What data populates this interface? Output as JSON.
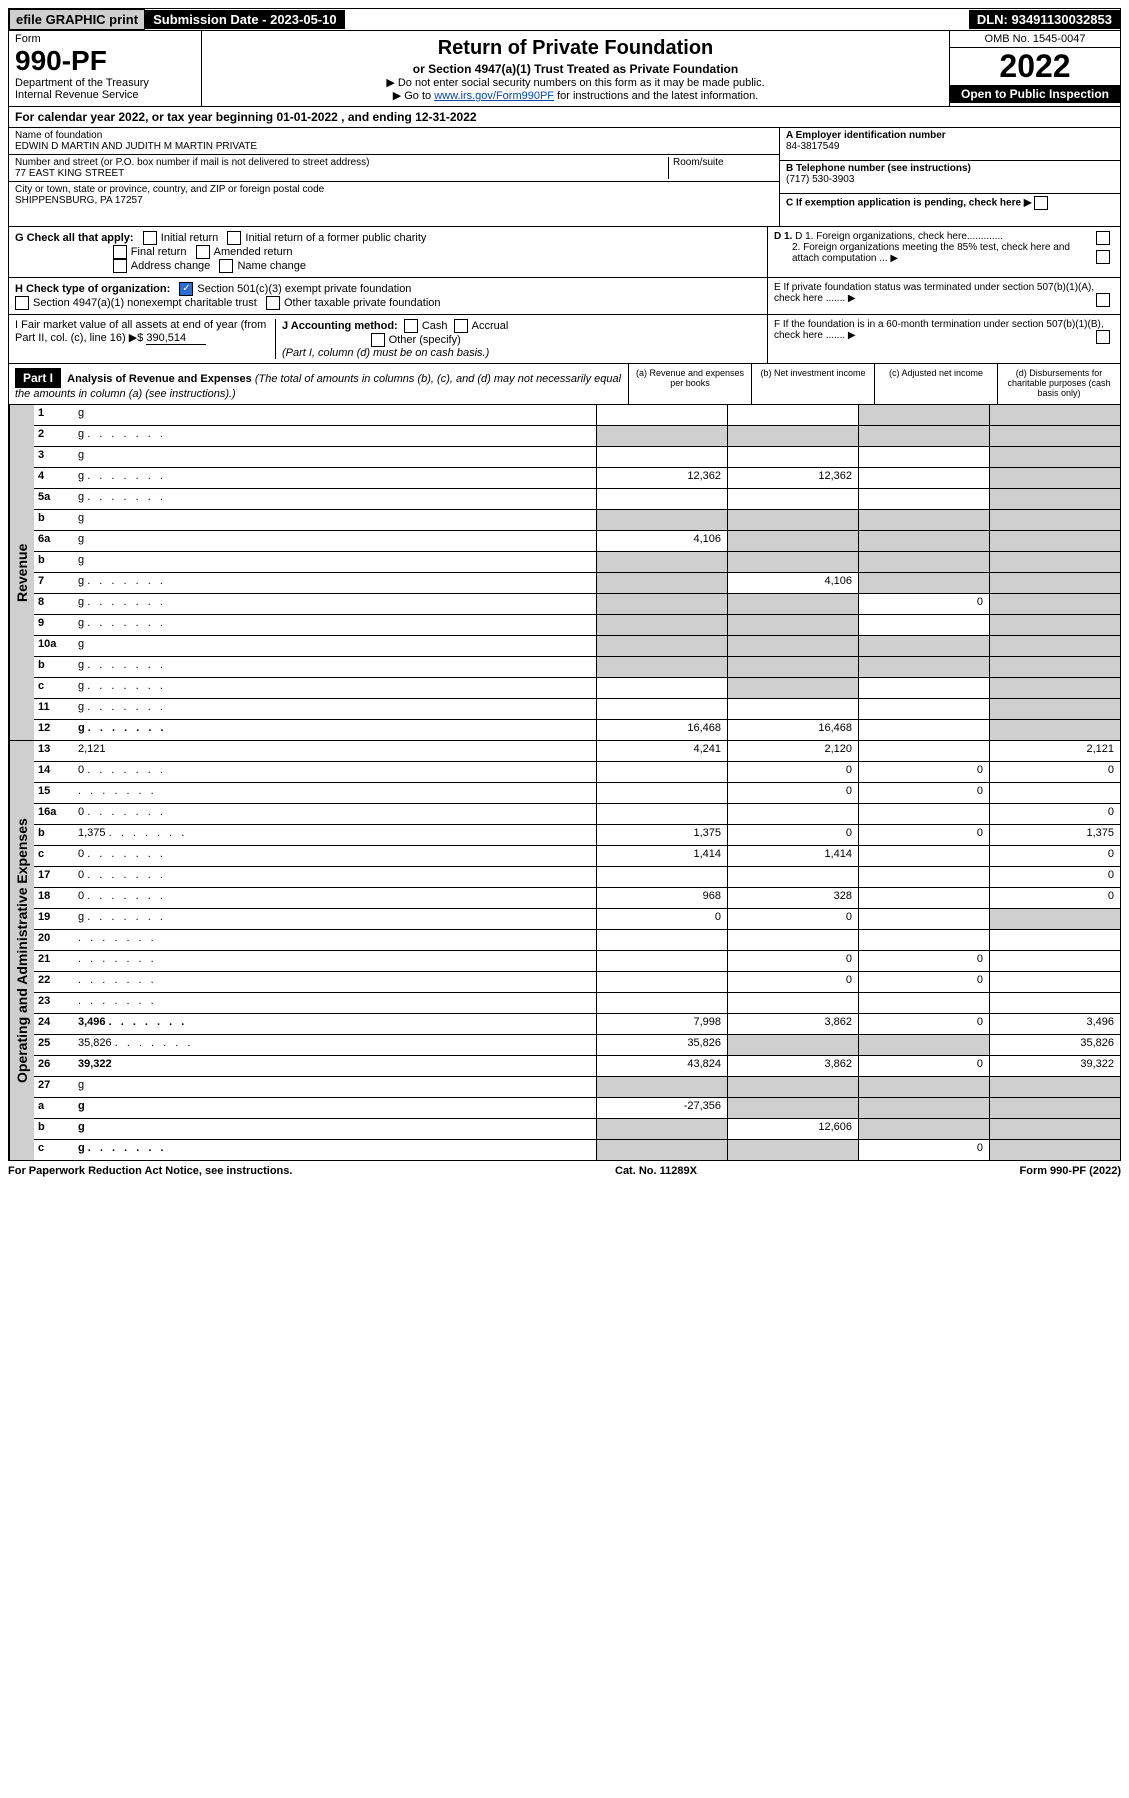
{
  "top": {
    "efile": "efile GRAPHIC print",
    "subdate_label": "Submission Date - 2023-05-10",
    "dln": "DLN: 93491130032853"
  },
  "header": {
    "form_label": "Form",
    "form_no": "990-PF",
    "dept": "Department of the Treasury",
    "irs": "Internal Revenue Service",
    "title": "Return of Private Foundation",
    "subtitle": "or Section 4947(a)(1) Trust Treated as Private Foundation",
    "note1": "▶ Do not enter social security numbers on this form as it may be made public.",
    "note2_pre": "▶ Go to ",
    "note2_link": "www.irs.gov/Form990PF",
    "note2_post": " for instructions and the latest information.",
    "omb": "OMB No. 1545-0047",
    "year": "2022",
    "open": "Open to Public Inspection"
  },
  "calyear": "For calendar year 2022, or tax year beginning 01-01-2022            , and ending 12-31-2022",
  "info": {
    "name_label": "Name of foundation",
    "name": "EDWIN D MARTIN AND JUDITH M MARTIN PRIVATE",
    "addr_label": "Number and street (or P.O. box number if mail is not delivered to street address)",
    "addr": "77 EAST KING STREET",
    "room_label": "Room/suite",
    "city_label": "City or town, state or province, country, and ZIP or foreign postal code",
    "city": "SHIPPENSBURG, PA  17257",
    "a_label": "A Employer identification number",
    "a_val": "84-3817549",
    "b_label": "B Telephone number (see instructions)",
    "b_val": "(717) 530-3903",
    "c_label": "C If exemption application is pending, check here ▶",
    "d1": "D 1. Foreign organizations, check here.............",
    "d2": "2. Foreign organizations meeting the 85% test, check here and attach computation ...  ▶",
    "e": "E  If private foundation status was terminated under section 507(b)(1)(A), check here .......  ▶",
    "f": "F  If the foundation is in a 60-month termination under section 507(b)(1)(B), check here .......  ▶"
  },
  "checks": {
    "g_label": "G Check all that apply:",
    "initial": "Initial return",
    "initial_former": "Initial return of a former public charity",
    "final": "Final return",
    "amended": "Amended return",
    "address": "Address change",
    "name": "Name change",
    "h_label": "H Check type of organization:",
    "h1": "Section 501(c)(3) exempt private foundation",
    "h2": "Section 4947(a)(1) nonexempt charitable trust",
    "h3": "Other taxable private foundation",
    "i_label": "I Fair market value of all assets at end of year (from Part II, col. (c), line 16) ▶$",
    "i_val": "390,514",
    "j_label": "J Accounting method:",
    "j_cash": "Cash",
    "j_accrual": "Accrual",
    "j_other": "Other (specify)",
    "j_note": "(Part I, column (d) must be on cash basis.)"
  },
  "part1": {
    "label": "Part I",
    "title": "Analysis of Revenue and Expenses",
    "title_note": "(The total of amounts in columns (b), (c), and (d) may not necessarily equal the amounts in column (a) (see instructions).)",
    "col_a": "(a)   Revenue and expenses per books",
    "col_b": "(b)   Net investment income",
    "col_c": "(c)   Adjusted net income",
    "col_d": "(d)   Disbursements for charitable purposes (cash basis only)"
  },
  "side": {
    "revenue": "Revenue",
    "expenses": "Operating and Administrative Expenses"
  },
  "rows": [
    {
      "n": "1",
      "d": "g",
      "a": "",
      "b": "",
      "c": "g"
    },
    {
      "n": "2",
      "d": "g",
      "dots": true,
      "a": "g",
      "b": "g",
      "c": "g"
    },
    {
      "n": "3",
      "d": "g",
      "a": "",
      "b": "",
      "c": ""
    },
    {
      "n": "4",
      "d": "g",
      "dots": true,
      "a": "12,362",
      "b": "12,362",
      "c": ""
    },
    {
      "n": "5a",
      "d": "g",
      "dots": true,
      "a": "",
      "b": "",
      "c": ""
    },
    {
      "n": "b",
      "d": "g",
      "a": "g",
      "b": "g",
      "c": "g"
    },
    {
      "n": "6a",
      "d": "g",
      "a": "4,106",
      "b": "g",
      "c": "g"
    },
    {
      "n": "b",
      "d": "g",
      "a": "g",
      "b": "g",
      "c": "g"
    },
    {
      "n": "7",
      "d": "g",
      "dots": true,
      "a": "g",
      "b": "4,106",
      "c": "g"
    },
    {
      "n": "8",
      "d": "g",
      "dots": true,
      "a": "g",
      "b": "g",
      "c": "0"
    },
    {
      "n": "9",
      "d": "g",
      "dots": true,
      "a": "g",
      "b": "g",
      "c": ""
    },
    {
      "n": "10a",
      "d": "g",
      "a": "g",
      "b": "g",
      "c": "g"
    },
    {
      "n": "b",
      "d": "g",
      "dots": true,
      "a": "g",
      "b": "g",
      "c": "g"
    },
    {
      "n": "c",
      "d": "g",
      "dots": true,
      "a": "",
      "b": "g",
      "c": ""
    },
    {
      "n": "11",
      "d": "g",
      "dots": true,
      "a": "",
      "b": "",
      "c": ""
    },
    {
      "n": "12",
      "d": "g",
      "dots": true,
      "bold": true,
      "a": "16,468",
      "b": "16,468",
      "c": ""
    }
  ],
  "exp_rows": [
    {
      "n": "13",
      "d": "2,121",
      "a": "4,241",
      "b": "2,120",
      "c": ""
    },
    {
      "n": "14",
      "d": "0",
      "dots": true,
      "a": "",
      "b": "0",
      "c": "0"
    },
    {
      "n": "15",
      "d": "",
      "dots": true,
      "a": "",
      "b": "0",
      "c": "0"
    },
    {
      "n": "16a",
      "d": "0",
      "dots": true,
      "a": "",
      "b": "",
      "c": ""
    },
    {
      "n": "b",
      "d": "1,375",
      "dots": true,
      "a": "1,375",
      "b": "0",
      "c": "0"
    },
    {
      "n": "c",
      "d": "0",
      "dots": true,
      "a": "1,414",
      "b": "1,414",
      "c": ""
    },
    {
      "n": "17",
      "d": "0",
      "dots": true,
      "a": "",
      "b": "",
      "c": ""
    },
    {
      "n": "18",
      "d": "0",
      "dots": true,
      "a": "968",
      "b": "328",
      "c": ""
    },
    {
      "n": "19",
      "d": "g",
      "dots": true,
      "a": "0",
      "b": "0",
      "c": ""
    },
    {
      "n": "20",
      "d": "",
      "dots": true,
      "a": "",
      "b": "",
      "c": ""
    },
    {
      "n": "21",
      "d": "",
      "dots": true,
      "a": "",
      "b": "0",
      "c": "0"
    },
    {
      "n": "22",
      "d": "",
      "dots": true,
      "a": "",
      "b": "0",
      "c": "0"
    },
    {
      "n": "23",
      "d": "",
      "dots": true,
      "a": "",
      "b": "",
      "c": ""
    },
    {
      "n": "24",
      "d": "3,496",
      "dots": true,
      "bold": true,
      "a": "7,998",
      "b": "3,862",
      "c": "0"
    },
    {
      "n": "25",
      "d": "35,826",
      "dots": true,
      "a": "35,826",
      "b": "g",
      "c": "g"
    },
    {
      "n": "26",
      "d": "39,322",
      "bold": true,
      "a": "43,824",
      "b": "3,862",
      "c": "0"
    },
    {
      "n": "27",
      "d": "g",
      "a": "g",
      "b": "g",
      "c": "g"
    },
    {
      "n": "a",
      "d": "g",
      "bold": true,
      "a": "-27,356",
      "b": "g",
      "c": "g"
    },
    {
      "n": "b",
      "d": "g",
      "bold": true,
      "a": "g",
      "b": "12,606",
      "c": "g"
    },
    {
      "n": "c",
      "d": "g",
      "dots": true,
      "bold": true,
      "a": "g",
      "b": "g",
      "c": "0"
    }
  ],
  "footer": {
    "left": "For Paperwork Reduction Act Notice, see instructions.",
    "mid": "Cat. No. 11289X",
    "right": "Form 990-PF (2022)"
  }
}
